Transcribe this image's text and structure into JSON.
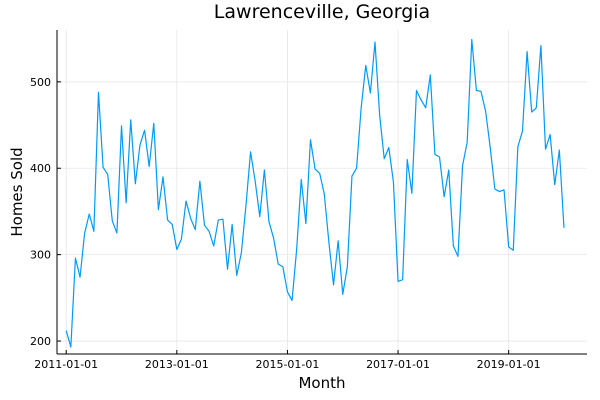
{
  "chart_data": {
    "type": "line",
    "title": "Lawrenceville, Georgia",
    "xlabel": "Month",
    "ylabel": "Homes Sold",
    "x_start": "2011-01-01",
    "x_step": "1 month",
    "x_ticks": [
      "2011-01-01",
      "2013-01-01",
      "2015-01-01",
      "2017-01-01",
      "2019-01-01"
    ],
    "y_ticks": [
      200,
      300,
      400,
      500
    ],
    "ylim": [
      185,
      560
    ],
    "xlim": [
      "2010-11-01",
      "2020-06-01"
    ],
    "grid": true,
    "legend": "none",
    "colors": {
      "series": "#009AF9",
      "grid": "#e6e6e6",
      "axis": "#000000"
    },
    "series": [
      {
        "values": [
          212,
          193,
          296,
          274,
          325,
          347,
          327,
          488,
          401,
          393,
          339,
          325,
          449,
          360,
          456,
          382,
          427,
          444,
          402,
          452,
          352,
          390,
          340,
          335,
          306,
          318,
          362,
          342,
          329,
          385,
          334,
          327,
          310,
          340,
          341,
          283,
          335,
          276,
          302,
          357,
          419,
          385,
          344,
          398,
          338,
          319,
          289,
          286,
          257,
          247,
          306,
          387,
          336,
          433,
          399,
          394,
          370,
          314,
          265,
          316,
          254,
          286,
          391,
          400,
          470,
          519,
          487,
          546,
          462,
          411,
          424,
          384,
          269,
          271,
          410,
          371,
          490,
          479,
          470,
          508,
          416,
          413,
          367,
          398,
          310,
          298,
          403,
          430,
          549,
          490,
          489,
          466,
          424,
          376,
          373,
          375,
          309,
          305,
          425,
          443,
          535,
          465,
          470,
          542,
          422,
          439,
          381,
          421,
          331
        ]
      }
    ]
  }
}
